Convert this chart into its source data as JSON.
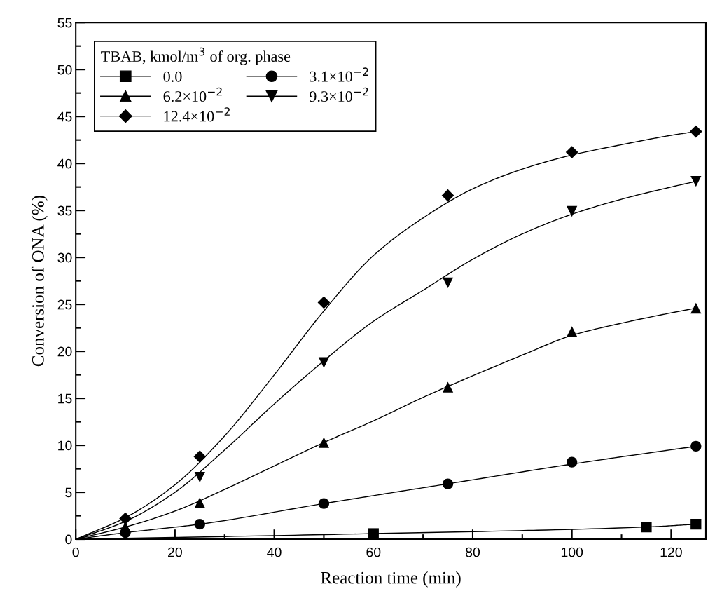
{
  "chart_data": {
    "type": "scatter",
    "xlabel": "Reaction time (min)",
    "ylabel": "Conversion of ONA (%)",
    "legend_title": "TBAB, kmol/m$^{3}$ of org. phase",
    "xlim": [
      0,
      127
    ],
    "ylim": [
      0,
      55
    ],
    "xticks": [
      0,
      {
        "value": 10,
        "label": null
      },
      20,
      {
        "value": 30,
        "label": null
      },
      40,
      {
        "value": 50,
        "label": null
      },
      60,
      {
        "value": 70,
        "label": null
      },
      80,
      {
        "value": 90,
        "label": null
      },
      100,
      {
        "value": 110,
        "label": null
      },
      120
    ],
    "yticks": [
      0,
      {
        "value": 2.5,
        "label": null
      },
      5,
      {
        "value": 7.5,
        "label": null
      },
      10,
      {
        "value": 12.5,
        "label": null
      },
      15,
      {
        "value": 17.5,
        "label": null
      },
      20,
      {
        "value": 22.5,
        "label": null
      },
      25,
      {
        "value": 27.5,
        "label": null
      },
      30,
      {
        "value": 32.5,
        "label": null
      },
      35,
      {
        "value": 37.5,
        "label": null
      },
      40,
      {
        "value": 42.5,
        "label": null
      },
      45,
      {
        "value": 47.5,
        "label": null
      },
      50,
      {
        "value": 52.5,
        "label": null
      },
      55
    ],
    "grid": false,
    "legend": "top left",
    "series": [
      {
        "name": "0.0",
        "type": "scatter",
        "marker": "square",
        "color": "#000000",
        "x": [
          60,
          115,
          125
        ],
        "values": [
          0.6,
          1.3,
          1.6
        ]
      },
      {
        "name": "3.1×10$^{−2}$",
        "type": "scatter",
        "marker": "circle",
        "color": "#000000",
        "x": [
          10,
          25,
          50,
          75,
          100,
          125
        ],
        "values": [
          0.7,
          1.6,
          3.8,
          5.9,
          8.2,
          9.9
        ]
      },
      {
        "name": "6.2×10$^{−2}$",
        "type": "scatter",
        "marker": "triangle",
        "color": "#000000",
        "x": [
          10,
          25,
          50,
          75,
          100,
          125
        ],
        "values": [
          1.3,
          3.9,
          10.3,
          16.2,
          22.1,
          24.6
        ]
      },
      {
        "name": "9.3×10$^{−2}$",
        "type": "scatter",
        "color": "#000000",
        "x": [
          25,
          50,
          75,
          100,
          125
        ],
        "values": [
          6.6,
          18.8,
          27.3,
          34.9,
          38.1
        ]
      },
      {
        "name": "12.4×10$^{−2}$",
        "type": "scatter",
        "marker": "diamond",
        "color": "#000000",
        "x": [
          10,
          25,
          50,
          75,
          100,
          125
        ],
        "values": [
          2.2,
          8.8,
          25.2,
          36.6,
          41.2,
          43.4
        ]
      },
      {
        "type": "line",
        "marker": "none",
        "color": "#000000",
        "x": [
          0,
          60,
          115,
          125
        ],
        "values": [
          0,
          0.6,
          1.3,
          1.6
        ]
      },
      {
        "type": "line",
        "marker": "none",
        "color": "#000000",
        "x": [
          0,
          10,
          25,
          50,
          75,
          100,
          125
        ],
        "values": [
          0,
          0.7,
          1.6,
          3.8,
          5.9,
          8.0,
          9.9
        ]
      },
      {
        "type": "line",
        "marker": "none",
        "color": "#000000",
        "x": [
          0,
          10,
          20,
          30,
          40,
          50,
          60,
          70,
          80,
          90,
          100,
          110,
          120,
          125
        ],
        "values": [
          0,
          1.3,
          3.0,
          5.3,
          7.8,
          10.3,
          12.6,
          15.1,
          17.4,
          19.6,
          21.7,
          23.0,
          24.1,
          24.6
        ]
      },
      {
        "type": "line",
        "marker": "none",
        "color": "#000000",
        "x": [
          0,
          10,
          20,
          30,
          40,
          50,
          60,
          70,
          80,
          90,
          100,
          110,
          120,
          125
        ],
        "values": [
          0,
          1.9,
          5.0,
          9.5,
          14.4,
          19.0,
          23.2,
          26.5,
          29.8,
          32.5,
          34.6,
          36.2,
          37.5,
          38.1
        ]
      },
      {
        "type": "line",
        "marker": "none",
        "color": "#000000",
        "x": [
          0,
          10,
          20,
          30,
          40,
          50,
          60,
          70,
          80,
          90,
          100,
          110,
          120,
          125
        ],
        "values": [
          0,
          2.3,
          5.8,
          11.0,
          17.5,
          24.3,
          30.2,
          34.2,
          37.3,
          39.4,
          40.9,
          42.0,
          43.0,
          43.4
        ]
      }
    ]
  }
}
